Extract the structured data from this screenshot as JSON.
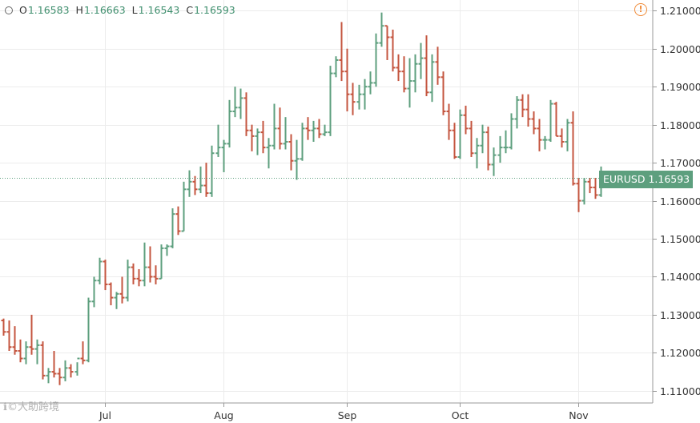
{
  "legend": {
    "open_label": "O",
    "open_value": "1.16583",
    "high_label": "H",
    "high_value": "1.16663",
    "low_label": "L",
    "low_value": "1.16543",
    "close_label": "C",
    "close_value": "1.16593"
  },
  "price_tag": {
    "symbol": "EURUSD",
    "value": "1.16593"
  },
  "watermark": {
    "text": "ℹ©大助跨境"
  },
  "colors": {
    "up": "#5d9f7e",
    "down": "#c4553f",
    "grid": "#ececec",
    "axis": "#999999",
    "price_line": "#5d9f7e",
    "warning": "#f08c3a"
  },
  "icons": {
    "symbol_icon": "circle-icon",
    "warning_icon": "warning-circle-icon"
  },
  "chart_data": {
    "type": "ohlc",
    "title": "",
    "xlabel": "",
    "ylabel": "",
    "ylim": [
      1.1068,
      1.2128
    ],
    "grid": true,
    "y_ticks": [
      "1.21000",
      "1.20000",
      "1.19000",
      "1.18000",
      "1.17000",
      "1.16000",
      "1.15000",
      "1.14000",
      "1.13000",
      "1.12000",
      "1.11000"
    ],
    "x_ticks": [
      {
        "label": "Jul",
        "bar": 18
      },
      {
        "label": "Aug",
        "bar": 39
      },
      {
        "label": "Sep",
        "bar": 61
      },
      {
        "label": "Oct",
        "bar": 81
      },
      {
        "label": "Nov",
        "bar": 102
      }
    ],
    "last_price": 1.16593,
    "bars": [
      [
        1.1285,
        1.129,
        1.1245,
        1.1255
      ],
      [
        1.1255,
        1.1285,
        1.1205,
        1.1215
      ],
      [
        1.1215,
        1.127,
        1.1195,
        1.1205
      ],
      [
        1.1205,
        1.1235,
        1.1175,
        1.1185
      ],
      [
        1.1185,
        1.123,
        1.117,
        1.1215
      ],
      [
        1.1215,
        1.13,
        1.1195,
        1.121
      ],
      [
        1.121,
        1.1235,
        1.117,
        1.122
      ],
      [
        1.122,
        1.123,
        1.113,
        1.114
      ],
      [
        1.114,
        1.116,
        1.112,
        1.115
      ],
      [
        1.115,
        1.1205,
        1.1135,
        1.1145
      ],
      [
        1.1145,
        1.116,
        1.1115,
        1.1135
      ],
      [
        1.1135,
        1.118,
        1.1125,
        1.116
      ],
      [
        1.116,
        1.117,
        1.1135,
        1.115
      ],
      [
        1.115,
        1.1175,
        1.114,
        1.1185
      ],
      [
        1.1185,
        1.123,
        1.117,
        1.118
      ],
      [
        1.118,
        1.1345,
        1.1175,
        1.1335
      ],
      [
        1.1335,
        1.14,
        1.132,
        1.139
      ],
      [
        1.139,
        1.145,
        1.138,
        1.144
      ],
      [
        1.144,
        1.1445,
        1.1365,
        1.138
      ],
      [
        1.138,
        1.1385,
        1.1325,
        1.1345
      ],
      [
        1.1345,
        1.136,
        1.1315,
        1.1355
      ],
      [
        1.1355,
        1.14,
        1.133,
        1.1345
      ],
      [
        1.1345,
        1.1445,
        1.1335,
        1.1425
      ],
      [
        1.1425,
        1.1435,
        1.138,
        1.1395
      ],
      [
        1.1395,
        1.142,
        1.1375,
        1.139
      ],
      [
        1.139,
        1.149,
        1.1375,
        1.1425
      ],
      [
        1.1425,
        1.148,
        1.1385,
        1.14
      ],
      [
        1.14,
        1.143,
        1.138,
        1.1395
      ],
      [
        1.1395,
        1.1485,
        1.1395,
        1.1475
      ],
      [
        1.1475,
        1.1485,
        1.1455,
        1.148
      ],
      [
        1.148,
        1.158,
        1.1475,
        1.1565
      ],
      [
        1.1565,
        1.1585,
        1.151,
        1.152
      ],
      [
        1.152,
        1.165,
        1.152,
        1.163
      ],
      [
        1.163,
        1.168,
        1.161,
        1.165
      ],
      [
        1.165,
        1.1665,
        1.1615,
        1.163
      ],
      [
        1.163,
        1.169,
        1.162,
        1.164
      ],
      [
        1.164,
        1.17,
        1.161,
        1.162
      ],
      [
        1.162,
        1.1745,
        1.161,
        1.1725
      ],
      [
        1.1725,
        1.18,
        1.1715,
        1.174
      ],
      [
        1.174,
        1.176,
        1.1675,
        1.175
      ],
      [
        1.175,
        1.1865,
        1.174,
        1.1835
      ],
      [
        1.1835,
        1.19,
        1.182,
        1.1845
      ],
      [
        1.1845,
        1.1895,
        1.1815,
        1.187
      ],
      [
        1.187,
        1.1885,
        1.177,
        1.1785
      ],
      [
        1.1785,
        1.18,
        1.173,
        1.177
      ],
      [
        1.177,
        1.179,
        1.172,
        1.178
      ],
      [
        1.178,
        1.181,
        1.1725,
        1.174
      ],
      [
        1.174,
        1.1765,
        1.1685,
        1.1745
      ],
      [
        1.1745,
        1.1855,
        1.1735,
        1.179
      ],
      [
        1.179,
        1.1845,
        1.1735,
        1.175
      ],
      [
        1.175,
        1.182,
        1.1735,
        1.1755
      ],
      [
        1.1755,
        1.1775,
        1.168,
        1.1705
      ],
      [
        1.1705,
        1.176,
        1.1655,
        1.171
      ],
      [
        1.171,
        1.1805,
        1.1705,
        1.179
      ],
      [
        1.179,
        1.182,
        1.176,
        1.1785
      ],
      [
        1.1785,
        1.181,
        1.1755,
        1.179
      ],
      [
        1.179,
        1.1815,
        1.1765,
        1.1775
      ],
      [
        1.1775,
        1.18,
        1.177,
        1.178
      ],
      [
        1.178,
        1.1955,
        1.177,
        1.1935
      ],
      [
        1.1935,
        1.198,
        1.1925,
        1.197
      ],
      [
        1.197,
        1.207,
        1.1915,
        1.194
      ],
      [
        1.194,
        1.2,
        1.1835,
        1.188
      ],
      [
        1.188,
        1.191,
        1.1825,
        1.186
      ],
      [
        1.186,
        1.1905,
        1.184,
        1.188
      ],
      [
        1.188,
        1.192,
        1.184,
        1.19
      ],
      [
        1.19,
        1.194,
        1.188,
        1.191
      ],
      [
        1.191,
        1.204,
        1.19,
        1.2015
      ],
      [
        1.2015,
        1.2095,
        1.2005,
        1.206
      ],
      [
        1.206,
        1.206,
        1.197,
        1.203
      ],
      [
        1.203,
        1.205,
        1.194,
        1.195
      ],
      [
        1.195,
        1.1985,
        1.1915,
        1.194
      ],
      [
        1.194,
        1.198,
        1.1885,
        1.1895
      ],
      [
        1.1895,
        1.1975,
        1.1845,
        1.1915
      ],
      [
        1.1915,
        1.1985,
        1.1885,
        1.196
      ],
      [
        1.196,
        1.2015,
        1.192,
        1.1975
      ],
      [
        1.1975,
        1.2035,
        1.1875,
        1.1885
      ],
      [
        1.1885,
        1.1985,
        1.186,
        1.1965
      ],
      [
        1.1965,
        1.2005,
        1.1905,
        1.1925
      ],
      [
        1.1925,
        1.194,
        1.1825,
        1.1835
      ],
      [
        1.1835,
        1.1855,
        1.176,
        1.1785
      ],
      [
        1.1785,
        1.1805,
        1.171,
        1.1715
      ],
      [
        1.1715,
        1.184,
        1.171,
        1.1825
      ],
      [
        1.1825,
        1.185,
        1.1775,
        1.179
      ],
      [
        1.179,
        1.181,
        1.1715,
        1.1725
      ],
      [
        1.1725,
        1.1765,
        1.1685,
        1.1745
      ],
      [
        1.1745,
        1.18,
        1.1725,
        1.178
      ],
      [
        1.178,
        1.1795,
        1.168,
        1.1695
      ],
      [
        1.1695,
        1.174,
        1.1665,
        1.172
      ],
      [
        1.172,
        1.177,
        1.17,
        1.174
      ],
      [
        1.174,
        1.1785,
        1.1725,
        1.174
      ],
      [
        1.174,
        1.183,
        1.1735,
        1.1815
      ],
      [
        1.1815,
        1.1875,
        1.179,
        1.1865
      ],
      [
        1.1865,
        1.188,
        1.182,
        1.184
      ],
      [
        1.184,
        1.188,
        1.1795,
        1.1815
      ],
      [
        1.1815,
        1.1835,
        1.1775,
        1.179
      ],
      [
        1.179,
        1.1815,
        1.173,
        1.176
      ],
      [
        1.176,
        1.177,
        1.1735,
        1.176
      ],
      [
        1.176,
        1.1865,
        1.1755,
        1.1855
      ],
      [
        1.1855,
        1.186,
        1.177,
        1.177
      ],
      [
        1.177,
        1.179,
        1.174,
        1.1755
      ],
      [
        1.1755,
        1.1815,
        1.173,
        1.1805
      ],
      [
        1.1805,
        1.1835,
        1.164,
        1.1645
      ],
      [
        1.1645,
        1.166,
        1.157,
        1.16
      ],
      [
        1.16,
        1.166,
        1.159,
        1.165
      ],
      [
        1.165,
        1.166,
        1.162,
        1.1635
      ],
      [
        1.1635,
        1.166,
        1.1605,
        1.1615
      ],
      [
        1.1615,
        1.169,
        1.161,
        1.165
      ],
      [
        1.16583,
        1.16663,
        1.16543,
        1.16593
      ]
    ]
  }
}
